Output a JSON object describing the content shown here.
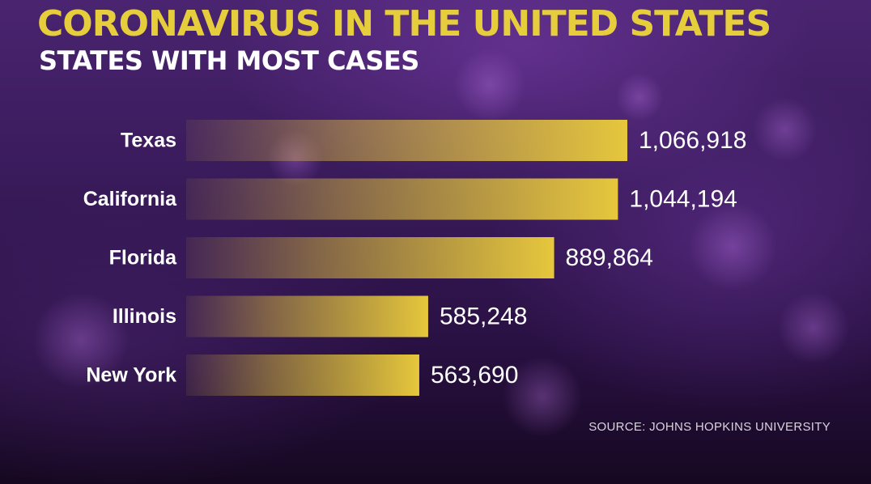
{
  "chart_data": {
    "type": "bar",
    "orientation": "horizontal",
    "title": "CORONAVIRUS IN THE UNITED STATES",
    "subtitle": "STATES WITH MOST CASES",
    "categories": [
      "Texas",
      "California",
      "Florida",
      "Illinois",
      "New York"
    ],
    "values": [
      1066918,
      1044194,
      889864,
      585248,
      563690
    ],
    "value_labels": [
      "1,066,918",
      "1,044,194",
      "889,864",
      "585,248",
      "563,690"
    ],
    "xlim": [
      0,
      1066918
    ],
    "grid": false,
    "legend": "none",
    "source": "SOURCE: JOHNS HOPKINS UNIVERSITY"
  },
  "colors": {
    "bar": "#e3c53b",
    "title": "#e6cd3c",
    "background": "#3a1b5c"
  }
}
